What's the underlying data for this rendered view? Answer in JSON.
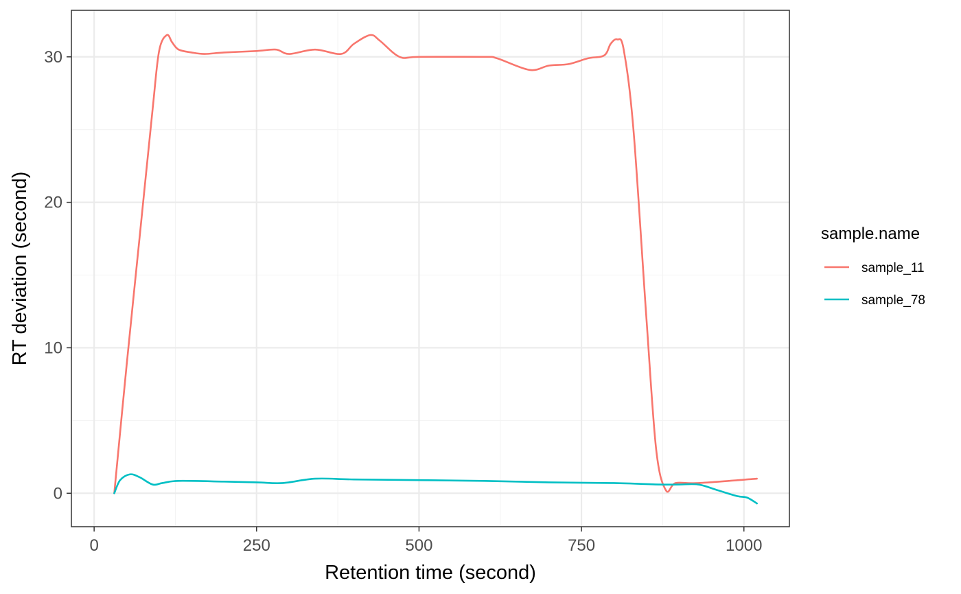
{
  "chart_data": {
    "type": "line",
    "xlabel": "Retention time (second)",
    "ylabel": "RT deviation (second)",
    "xlim": [
      -35,
      1070
    ],
    "ylim": [
      -2.3,
      33.2
    ],
    "x_ticks": [
      0,
      250,
      500,
      750,
      1000
    ],
    "x_tick_labels": [
      "0",
      "250",
      "500",
      "750",
      "1000"
    ],
    "y_ticks": [
      0,
      10,
      20,
      30
    ],
    "y_tick_labels": [
      "0",
      "10",
      "20",
      "30"
    ],
    "grid": true,
    "legend": {
      "title": "sample.name",
      "position": "right"
    },
    "series": [
      {
        "name": "sample_11",
        "color": "#F8766D",
        "points": [
          [
            31,
            0.0
          ],
          [
            50,
            8.8
          ],
          [
            70,
            17.6
          ],
          [
            90,
            26.4
          ],
          [
            100,
            30.4
          ],
          [
            112,
            31.5
          ],
          [
            120,
            31.0
          ],
          [
            130,
            30.5
          ],
          [
            150,
            30.3
          ],
          [
            170,
            30.2
          ],
          [
            200,
            30.3
          ],
          [
            250,
            30.4
          ],
          [
            280,
            30.5
          ],
          [
            300,
            30.2
          ],
          [
            340,
            30.5
          ],
          [
            380,
            30.2
          ],
          [
            400,
            30.9
          ],
          [
            425,
            31.5
          ],
          [
            440,
            31.1
          ],
          [
            470,
            30.0
          ],
          [
            500,
            30.0
          ],
          [
            600,
            30.0
          ],
          [
            620,
            29.9
          ],
          [
            670,
            29.1
          ],
          [
            700,
            29.4
          ],
          [
            730,
            29.5
          ],
          [
            760,
            29.9
          ],
          [
            785,
            30.1
          ],
          [
            795,
            30.9
          ],
          [
            805,
            31.2
          ],
          [
            815,
            30.5
          ],
          [
            830,
            25.0
          ],
          [
            850,
            12.0
          ],
          [
            865,
            3.0
          ],
          [
            880,
            0.2
          ],
          [
            895,
            0.7
          ],
          [
            930,
            0.7
          ],
          [
            1020,
            1.0
          ]
        ]
      },
      {
        "name": "sample_78",
        "color": "#00BFC4",
        "points": [
          [
            31,
            0.0
          ],
          [
            40,
            0.9
          ],
          [
            55,
            1.3
          ],
          [
            70,
            1.1
          ],
          [
            90,
            0.6
          ],
          [
            105,
            0.7
          ],
          [
            130,
            0.85
          ],
          [
            200,
            0.8
          ],
          [
            250,
            0.75
          ],
          [
            290,
            0.7
          ],
          [
            340,
            1.0
          ],
          [
            400,
            0.95
          ],
          [
            500,
            0.9
          ],
          [
            600,
            0.85
          ],
          [
            700,
            0.75
          ],
          [
            800,
            0.7
          ],
          [
            870,
            0.6
          ],
          [
            900,
            0.6
          ],
          [
            930,
            0.6
          ],
          [
            960,
            0.2
          ],
          [
            990,
            -0.2
          ],
          [
            1005,
            -0.3
          ],
          [
            1020,
            -0.7
          ]
        ]
      }
    ]
  }
}
